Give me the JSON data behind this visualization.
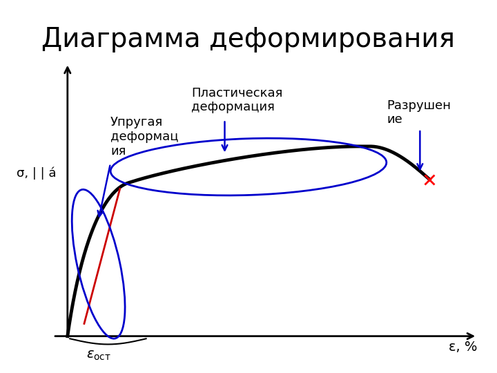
{
  "title": "Диаграмма деформирования",
  "title_fontsize": 28,
  "background_color": "#ffffff",
  "ylabel": "σ, | | á",
  "xlabel": "ε, %",
  "axis_color": "#000000",
  "main_curve_color": "#000000",
  "main_curve_lw": 3.5,
  "red_line_color": "#cc0000",
  "red_line_lw": 2.0,
  "blue_ellipse1_color": "#0000cc",
  "blue_ellipse2_color": "#0000cc",
  "arrow_color": "#0000cc",
  "label_elastic": "Упругая\nдеформац\nия",
  "label_plastic": "Пластическая\nдеформация",
  "label_fracture": "Разрушен\nие",
  "label_eps_ost": "εост",
  "annotation_fontsize": 13
}
